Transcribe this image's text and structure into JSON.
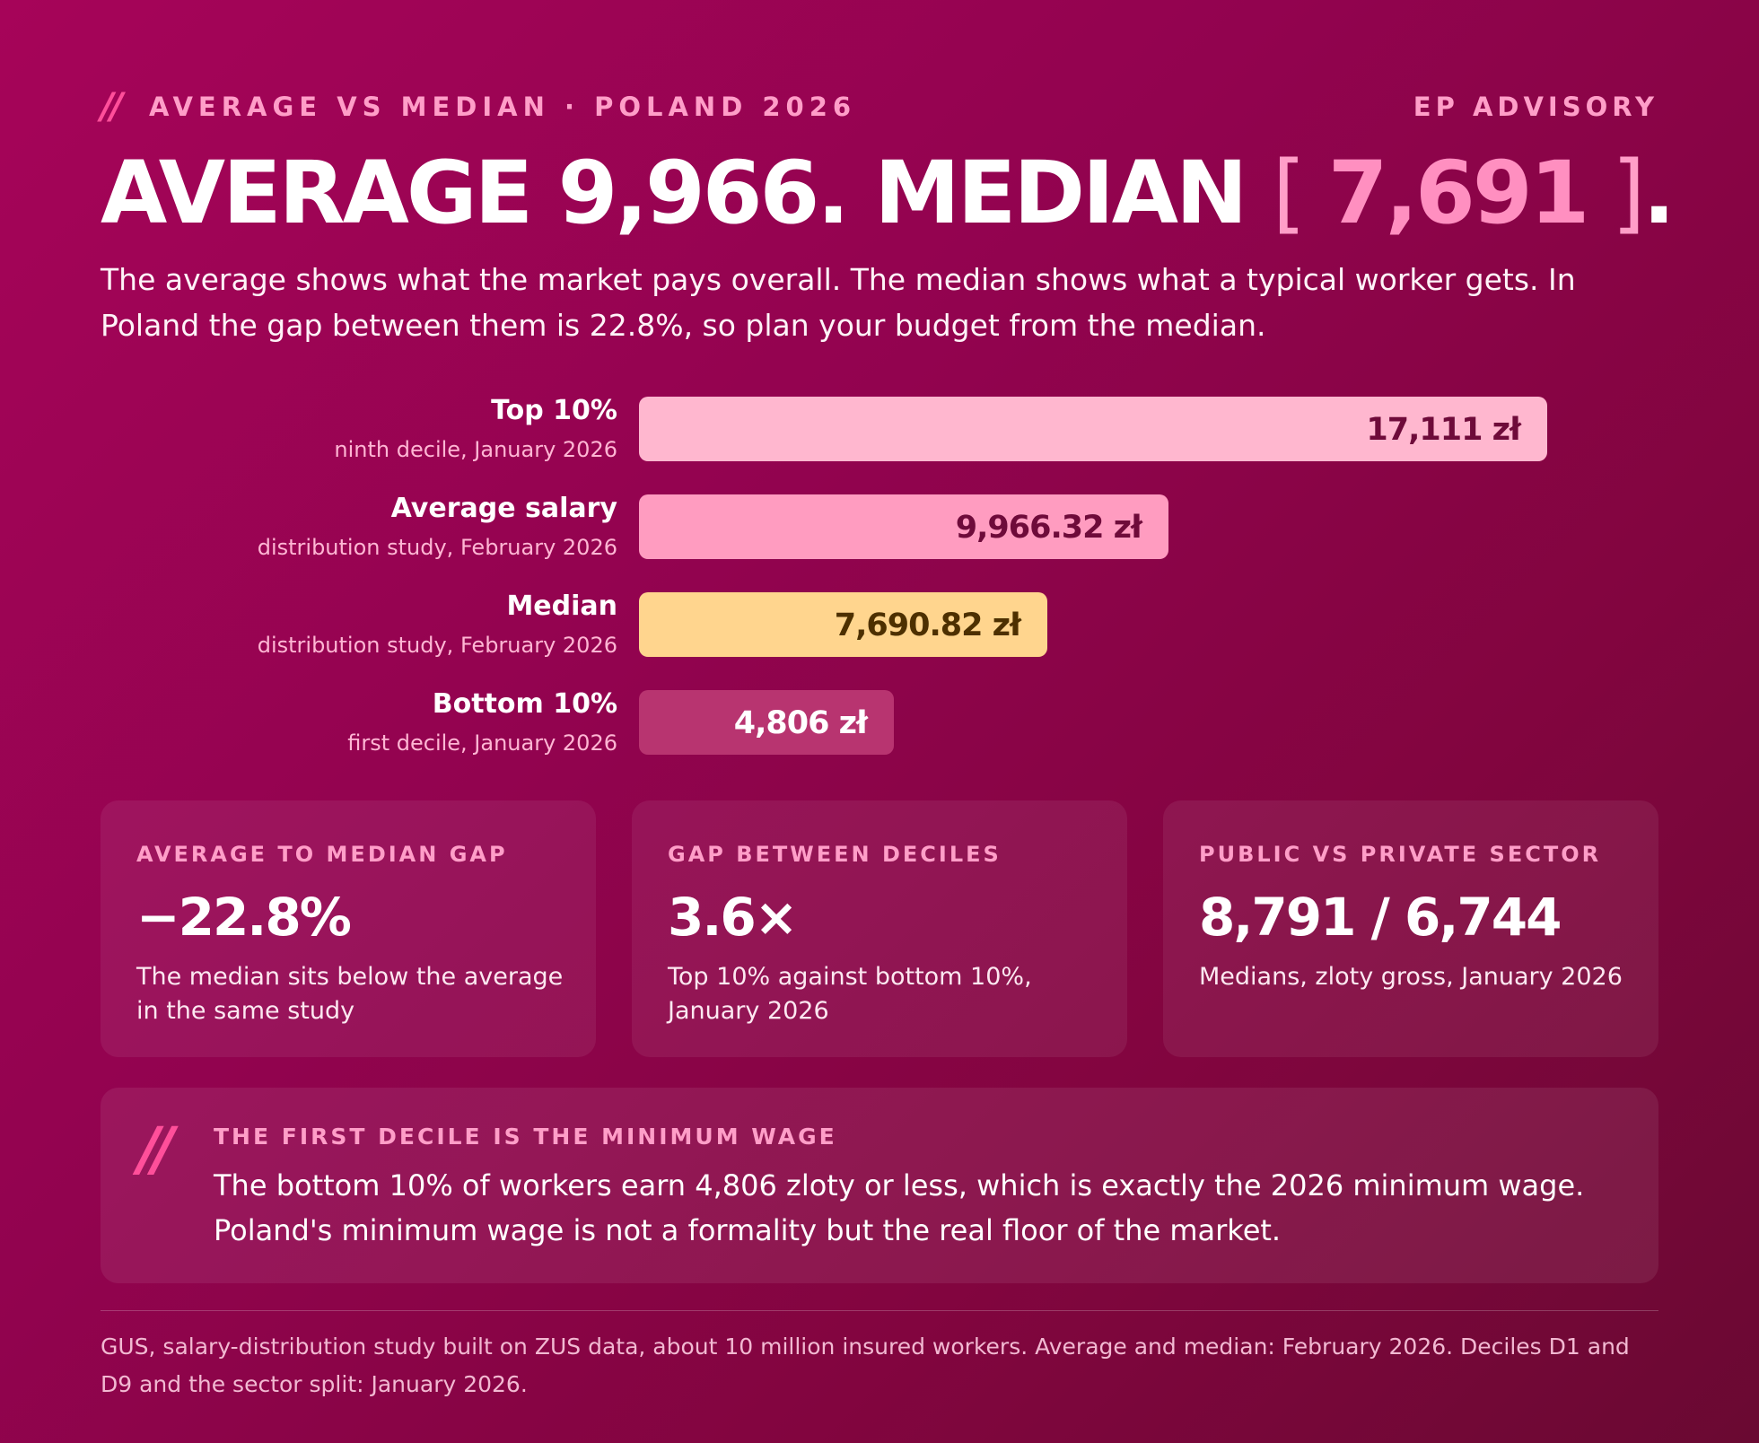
{
  "header": {
    "slashes": "//",
    "kicker": "AVERAGE VS MEDIAN · POLAND 2026",
    "brand": "EP ADVISORY",
    "headline_part1": "AVERAGE 9,966. MEDIAN ",
    "headline_open": "[ ",
    "headline_highlight": "7,691",
    "headline_close": " ]",
    "headline_end": ".",
    "lede": "The average shows what the market pays overall. The median shows what a typical worker gets. In Poland the gap between them is 22.8%, so plan your budget from the median."
  },
  "chart_data": {
    "type": "bar",
    "orientation": "horizontal",
    "unit": "zł",
    "xlim": [
      0,
      19200
    ],
    "rows": [
      {
        "label": "Top 10%",
        "sublabel": "ninth decile, January 2026",
        "value": 17111,
        "value_label": "17,111 zł",
        "color": "#ffb7cf",
        "text_color": "#6e0b3a"
      },
      {
        "label": "Average salary",
        "sublabel": "distribution study, February 2026",
        "value": 9966.32,
        "value_label": "9,966.32 zł",
        "color": "#ff9cc0",
        "text_color": "#6e0b3a"
      },
      {
        "label": "Median",
        "sublabel": "distribution study, February 2026",
        "value": 7690.82,
        "value_label": "7,690.82 zł",
        "color": "#ffd58e",
        "text_color": "#4d3000"
      },
      {
        "label": "Bottom 10%",
        "sublabel": "first decile, January 2026",
        "value": 4806,
        "value_label": "4,806 zł",
        "color": "#b83470",
        "text_color": "#ffffff"
      }
    ]
  },
  "cards": [
    {
      "label": "AVERAGE TO MEDIAN GAP",
      "value": "−22.8%",
      "note": "The median sits below the average in the same study"
    },
    {
      "label": "GAP BETWEEN DECILES",
      "value": "3.6×",
      "note": "Top 10% against bottom 10%, January 2026"
    },
    {
      "label": "PUBLIC VS PRIVATE SECTOR",
      "value": "8,791 / 6,744",
      "note": "Medians, zloty gross, January 2026"
    }
  ],
  "callout": {
    "slashes": "//",
    "title": "THE FIRST DECILE IS THE MINIMUM WAGE",
    "text": "The bottom 10% of workers earn 4,806 zloty or less, which is exactly the 2026 minimum wage. Poland's minimum wage is not a formality but the real floor of the market."
  },
  "source": "GUS, salary-distribution study built on ZUS data, about 10 million insured workers. Average and median: February 2026. Deciles D1 and D9 and the sector split: January 2026."
}
